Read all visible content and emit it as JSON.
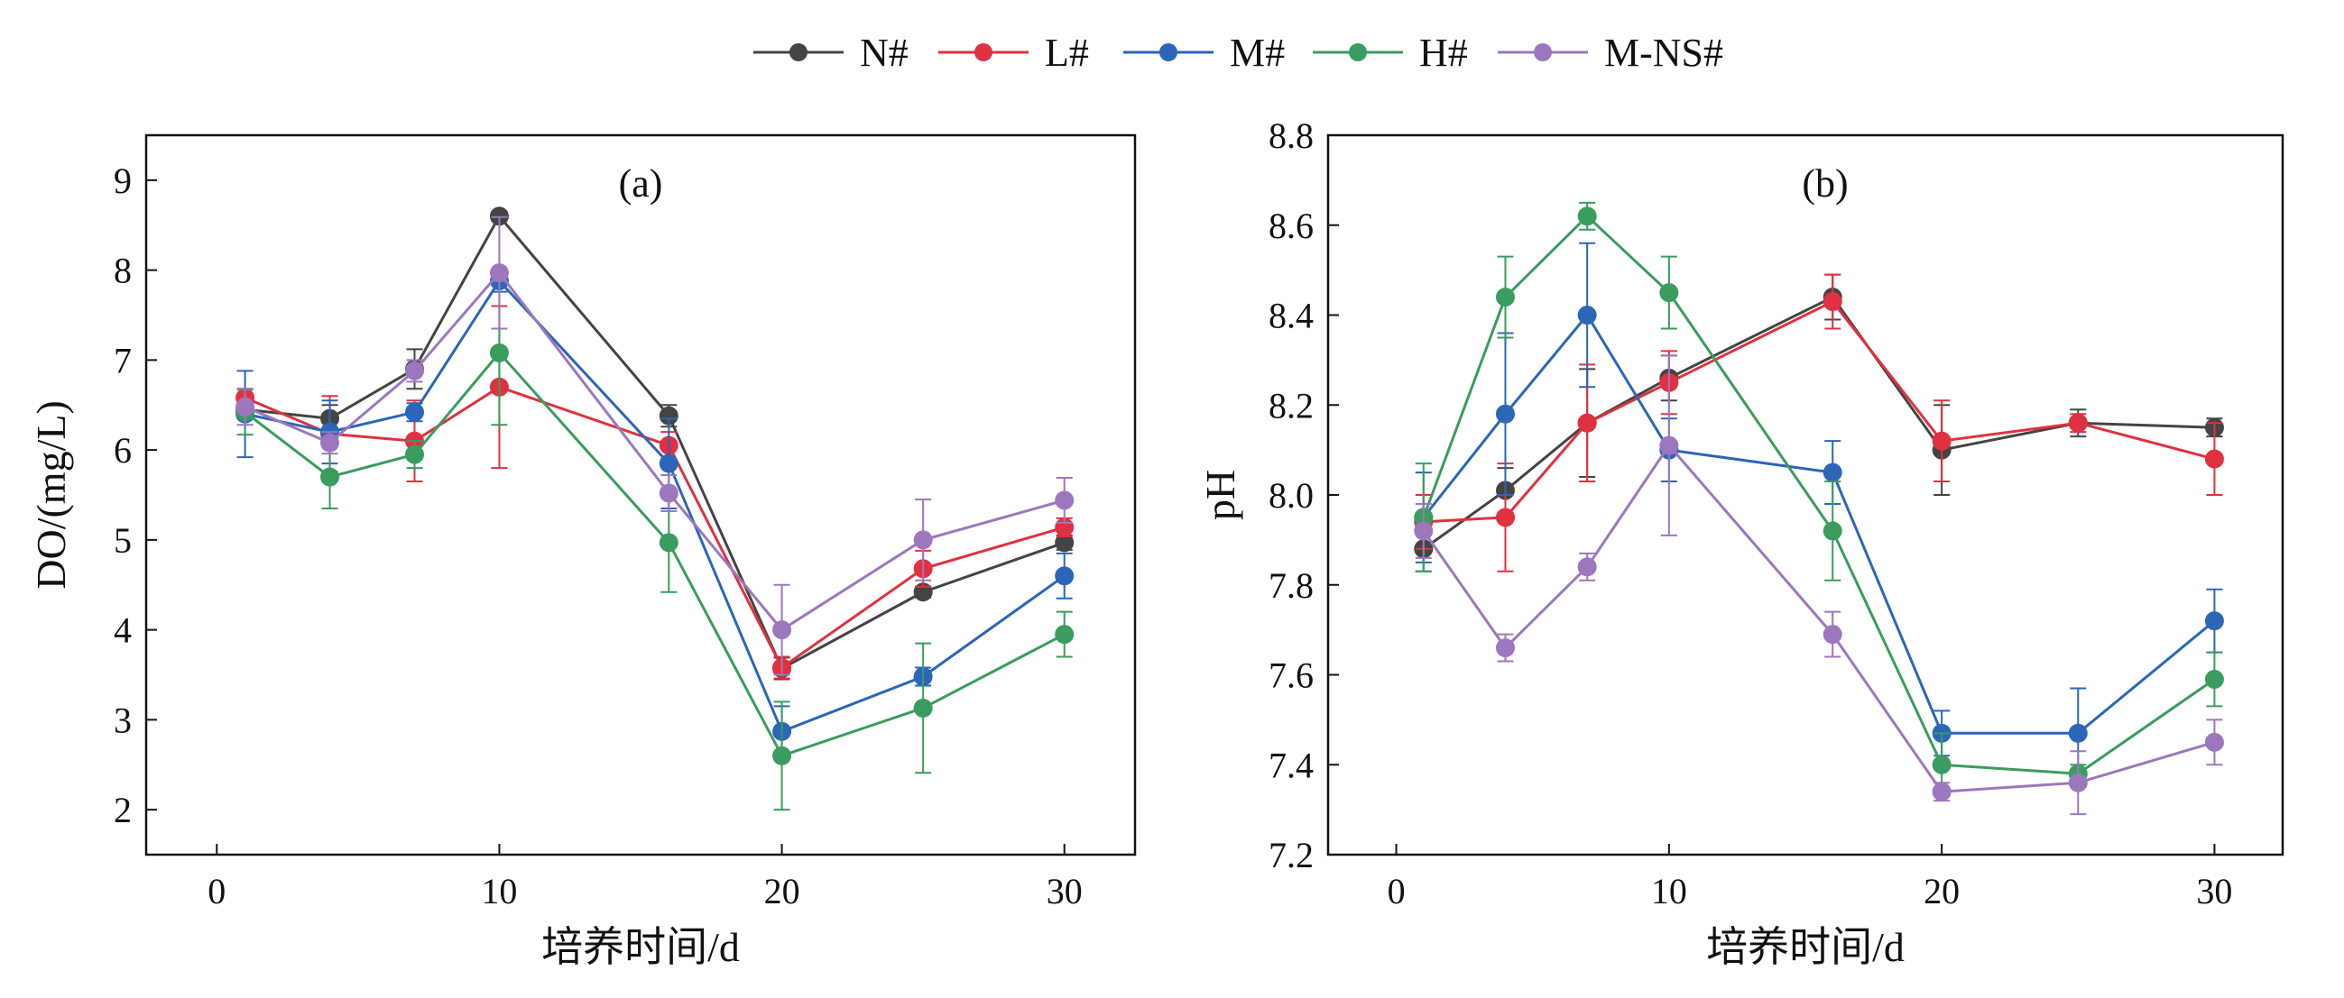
{
  "chart_data": {
    "legend": {
      "placement": "top-center",
      "entries": [
        {
          "name": "N#",
          "color": "#444444"
        },
        {
          "name": "L#",
          "color": "#E03140"
        },
        {
          "name": "M#",
          "color": "#2B66B8"
        },
        {
          "name": "H#",
          "color": "#3A9C5E"
        },
        {
          "name": "M-NS#",
          "color": "#9C77BE"
        }
      ]
    },
    "charts": [
      {
        "type": "line",
        "panel_label": "(a)",
        "xlabel": "培养时间/d",
        "ylabel": "DO/(mg/L)",
        "xlim": [
          -2.5,
          32.5
        ],
        "ylim": [
          1.5,
          9.5
        ],
        "xticks": [
          0,
          10,
          20,
          30
        ],
        "yticks": [
          2,
          3,
          4,
          5,
          6,
          7,
          8,
          9
        ],
        "ytick_decimals": 0,
        "grid": false,
        "x": [
          1,
          4,
          7,
          10,
          16,
          20,
          25,
          30
        ],
        "series": [
          {
            "name": "N#",
            "values": [
              6.45,
              6.35,
              6.9,
              8.6,
              6.38,
              3.57,
              4.42,
              4.97
            ],
            "errors": [
              0.1,
              0.15,
              0.22,
              0.05,
              0.12,
              0.12,
              0.06,
              0.08
            ]
          },
          {
            "name": "L#",
            "values": [
              6.58,
              6.18,
              6.1,
              6.7,
              6.05,
              3.58,
              4.68,
              5.14
            ],
            "errors": [
              0.1,
              0.42,
              0.45,
              0.9,
              0.15,
              0.12,
              0.2,
              0.1
            ]
          },
          {
            "name": "M#",
            "values": [
              6.4,
              6.2,
              6.42,
              7.88,
              5.85,
              2.87,
              3.48,
              4.6
            ],
            "errors": [
              0.48,
              0.35,
              0.1,
              0.12,
              0.5,
              0.28,
              0.1,
              0.25
            ]
          },
          {
            "name": "H#",
            "values": [
              6.42,
              5.7,
              5.95,
              7.08,
              4.97,
              2.6,
              3.13,
              3.95
            ],
            "errors": [
              0.25,
              0.35,
              0.15,
              0.8,
              0.55,
              0.6,
              0.72,
              0.25
            ]
          },
          {
            "name": "M-NS#",
            "values": [
              6.48,
              6.08,
              6.88,
              7.97,
              5.52,
              4.0,
              5.0,
              5.44
            ],
            "errors": [
              0.2,
              0.12,
              0.12,
              0.62,
              0.2,
              0.5,
              0.45,
              0.25
            ]
          }
        ]
      },
      {
        "type": "line",
        "panel_label": "(b)",
        "xlabel": "培养时间/d",
        "ylabel": "pH",
        "xlim": [
          -2.5,
          32.5
        ],
        "ylim": [
          7.2,
          8.8
        ],
        "xticks": [
          0,
          10,
          20,
          30
        ],
        "yticks": [
          7.2,
          7.4,
          7.6,
          7.8,
          8.0,
          8.2,
          8.4,
          8.6,
          8.8
        ],
        "ytick_decimals": 1,
        "grid": false,
        "x": [
          1,
          4,
          7,
          10,
          16,
          20,
          25,
          30
        ],
        "series": [
          {
            "name": "N#",
            "values": [
              7.88,
              8.01,
              8.16,
              8.26,
              8.44,
              8.1,
              8.16,
              8.15
            ],
            "errors": [
              0.05,
              0.05,
              0.12,
              0.05,
              0.05,
              0.1,
              0.03,
              0.02
            ]
          },
          {
            "name": "L#",
            "values": [
              7.94,
              7.95,
              8.16,
              8.25,
              8.43,
              8.12,
              8.16,
              8.08
            ],
            "errors": [
              0.06,
              0.12,
              0.13,
              0.07,
              0.06,
              0.09,
              0.02,
              0.08
            ]
          },
          {
            "name": "M#",
            "values": [
              7.95,
              8.18,
              8.4,
              8.1,
              8.05,
              7.47,
              7.47,
              7.72
            ],
            "errors": [
              0.1,
              0.18,
              0.16,
              0.07,
              0.07,
              0.05,
              0.1,
              0.07
            ]
          },
          {
            "name": "H#",
            "values": [
              7.95,
              8.44,
              8.62,
              8.45,
              7.92,
              7.4,
              7.38,
              7.59
            ],
            "errors": [
              0.12,
              0.09,
              0.03,
              0.08,
              0.11,
              0.07,
              0.02,
              0.06
            ]
          },
          {
            "name": "M-NS#",
            "values": [
              7.92,
              7.66,
              7.84,
              8.11,
              7.69,
              7.34,
              7.36,
              7.45
            ],
            "errors": [
              0.06,
              0.03,
              0.03,
              0.2,
              0.05,
              0.02,
              0.07,
              0.05
            ]
          }
        ]
      }
    ]
  }
}
